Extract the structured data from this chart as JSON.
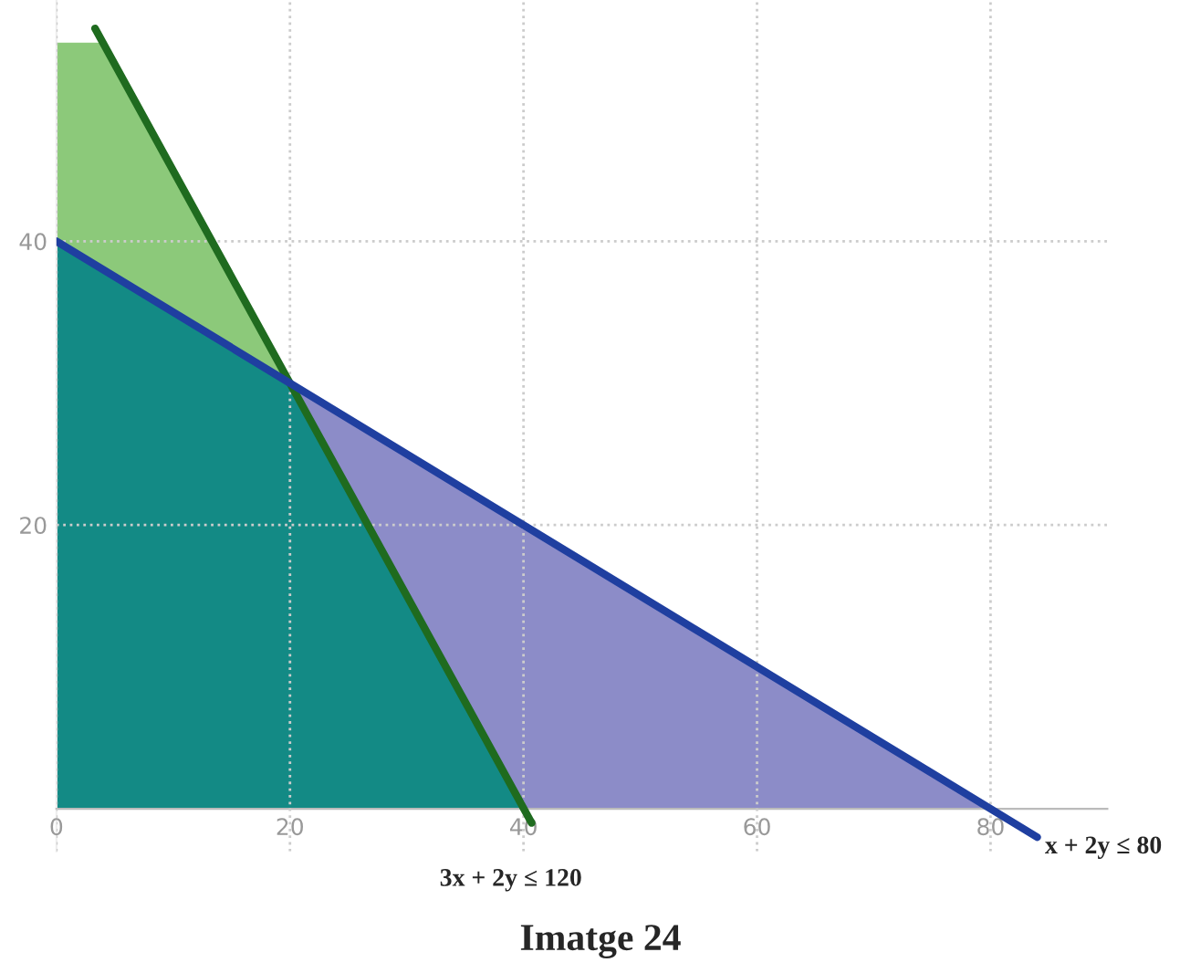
{
  "chart_data": {
    "type": "area",
    "xlim": [
      0,
      90
    ],
    "ylim": [
      -3,
      57
    ],
    "xticks": [
      0,
      20,
      40,
      60,
      80
    ],
    "yticks": [
      20,
      40
    ],
    "grid": true,
    "line_style": "solid",
    "series": [
      {
        "color": "#8c8cc8",
        "x": [
          0,
          80
        ],
        "values": [
          40,
          0
        ]
      },
      {
        "color": "#8cc97a",
        "x": [
          0,
          4,
          40
        ],
        "values": [
          54,
          54,
          0
        ]
      },
      {
        "color": "#138a85",
        "x": [
          0,
          20,
          40
        ],
        "values": [
          40,
          30,
          0
        ]
      },
      {
        "type": "line",
        "color": "#1f6b1f",
        "x": [
          3.3,
          40.7
        ],
        "values": [
          55,
          -1
        ]
      },
      {
        "type": "line",
        "color": "#1f3fa0",
        "x": [
          0,
          84
        ],
        "values": [
          40,
          -2
        ]
      }
    ],
    "annotations": [
      {
        "text": "3x + 2y ≤ 120",
        "x": 40,
        "y": 0
      },
      {
        "text": "x + 2y ≤ 80",
        "x": 84,
        "y": -2
      },
      "Imatge 24"
    ]
  }
}
